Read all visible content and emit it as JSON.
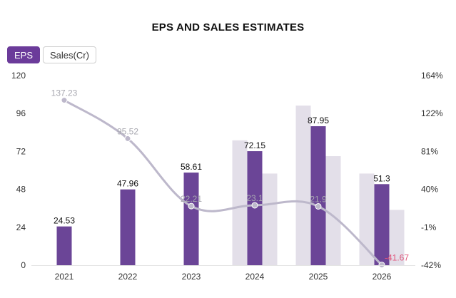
{
  "title": "EPS AND SALES ESTIMATES",
  "tabs": [
    {
      "label": "EPS",
      "active": true
    },
    {
      "label": "Sales(Cr)",
      "active": false
    }
  ],
  "colors": {
    "eps_bar": "#6b4597",
    "estimate_bar": "#e3dfe9",
    "line": "#bdb8cb",
    "line_label": "#a8a8b0",
    "negative_label": "#e0557a",
    "axis_text": "#333333"
  },
  "chart_data": {
    "type": "bar",
    "categories": [
      "2021",
      "2022",
      "2023",
      "2024",
      "2025",
      "2026"
    ],
    "ylim": [
      0,
      120
    ],
    "yticks": [
      "0",
      "24",
      "48",
      "72",
      "96",
      "120"
    ],
    "y2lim": [
      -42,
      164
    ],
    "y2ticks": [
      "-42%",
      "-1%",
      "40%",
      "81%",
      "122%",
      "164%"
    ],
    "series": [
      {
        "role": "eps",
        "values": [
          24.53,
          47.96,
          58.61,
          72.15,
          87.95,
          51.3
        ],
        "labels": [
          "24.53",
          "47.96",
          "58.61",
          "72.15",
          "87.95",
          "51.3"
        ]
      },
      {
        "role": "estimate_high",
        "values": [
          null,
          null,
          null,
          79,
          101,
          58
        ]
      },
      {
        "role": "estimate_low",
        "values": [
          null,
          null,
          null,
          58,
          69,
          35
        ]
      },
      {
        "role": "growth_line",
        "axis": "right",
        "values": [
          137.23,
          95.52,
          22.21,
          23.1,
          21.9,
          -41.67
        ],
        "labels": [
          "137.23",
          "95.52",
          "22.21",
          "23.1",
          "21.9",
          "-41.67"
        ]
      }
    ],
    "grid": false
  }
}
